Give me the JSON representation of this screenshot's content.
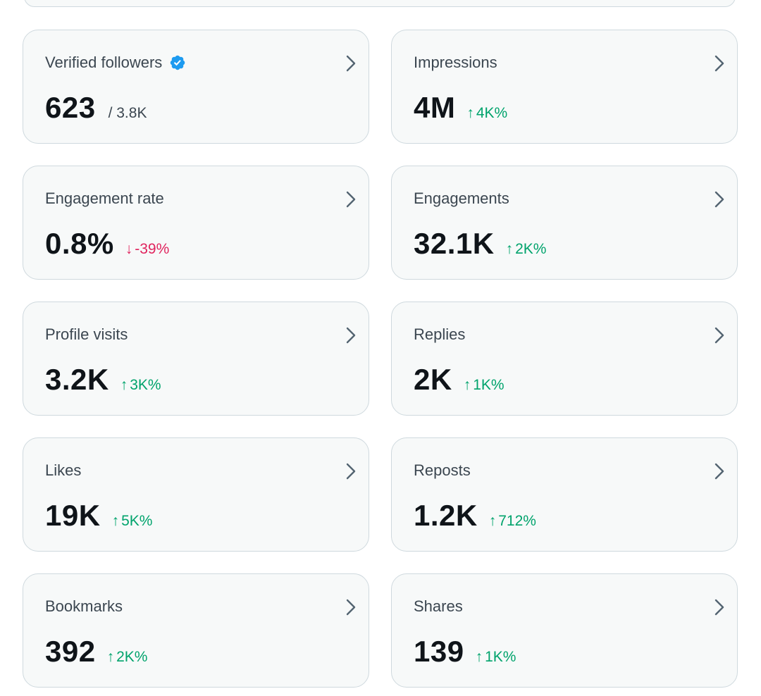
{
  "colors": {
    "up": "#00a36c",
    "down": "#e0245e",
    "verified": "#1d9bf0"
  },
  "cards": [
    {
      "title": "Verified followers",
      "value": "623",
      "secondary": "/ 3.8K",
      "icon": "verified-badge-icon"
    },
    {
      "title": "Impressions",
      "value": "4M",
      "change": "4K%",
      "direction": "up",
      "arrow": "↑"
    },
    {
      "title": "Engagement rate",
      "value": "0.8%",
      "change": "-39%",
      "direction": "down",
      "arrow": "↓"
    },
    {
      "title": "Engagements",
      "value": "32.1K",
      "change": "2K%",
      "direction": "up",
      "arrow": "↑"
    },
    {
      "title": "Profile visits",
      "value": "3.2K",
      "change": "3K%",
      "direction": "up",
      "arrow": "↑"
    },
    {
      "title": "Replies",
      "value": "2K",
      "change": "1K%",
      "direction": "up",
      "arrow": "↑"
    },
    {
      "title": "Likes",
      "value": "19K",
      "change": "5K%",
      "direction": "up",
      "arrow": "↑"
    },
    {
      "title": "Reposts",
      "value": "1.2K",
      "change": "712%",
      "direction": "up",
      "arrow": "↑"
    },
    {
      "title": "Bookmarks",
      "value": "392",
      "change": "2K%",
      "direction": "up",
      "arrow": "↑"
    },
    {
      "title": "Shares",
      "value": "139",
      "change": "1K%",
      "direction": "up",
      "arrow": "↑"
    }
  ]
}
